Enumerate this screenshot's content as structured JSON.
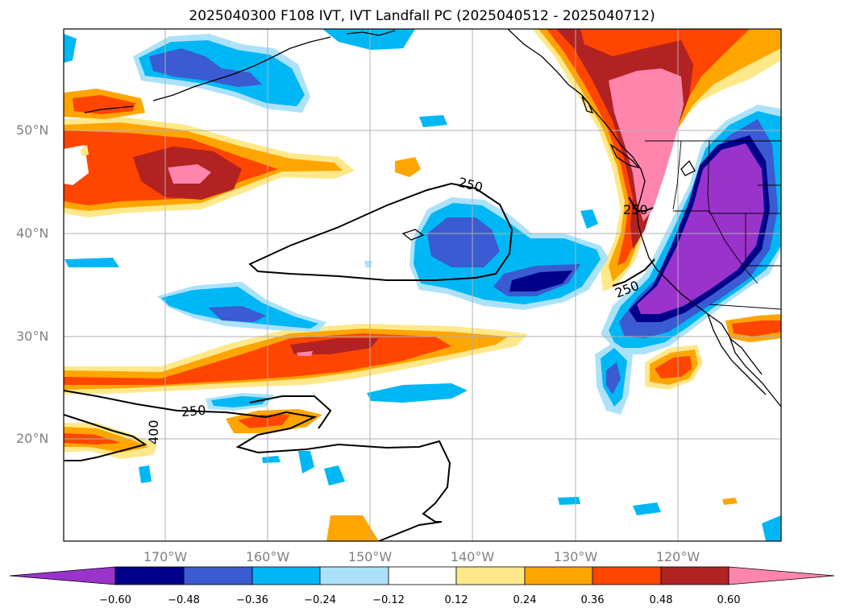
{
  "title": "2025040300 F108 IVT, IVT Landfall PC (2025040512 - 2025040712)",
  "map": {
    "lat_labels": [
      "50°N",
      "40°N",
      "30°N",
      "20°N"
    ],
    "lon_labels": [
      "170°W",
      "160°W",
      "150°W",
      "140°W",
      "130°W",
      "120°W"
    ],
    "contour_labels": [
      "250",
      "250",
      "250",
      "250",
      "400"
    ]
  },
  "colorbar": {
    "ticks": [
      "−0.60",
      "−0.48",
      "−0.36",
      "−0.24",
      "−0.12",
      "0.12",
      "0.24",
      "0.36",
      "0.48",
      "0.60"
    ],
    "colors": [
      "#9933cc",
      "#00008b",
      "#3a5bd1",
      "#00b7f5",
      "#abe2fa",
      "#ffffff",
      "#ffe88a",
      "#ffa500",
      "#ff4500",
      "#b22222",
      "#ff85ad"
    ]
  },
  "palette": {
    "purple": "#9933cc",
    "navy": "#00008b",
    "blue": "#3a5bd1",
    "cyan": "#00b7f5",
    "lightblue": "#abe2fa",
    "yellow": "#ffe88a",
    "orange": "#ffa500",
    "redorange": "#ff4500",
    "darkred": "#b22222",
    "pink": "#ff85ad"
  }
}
